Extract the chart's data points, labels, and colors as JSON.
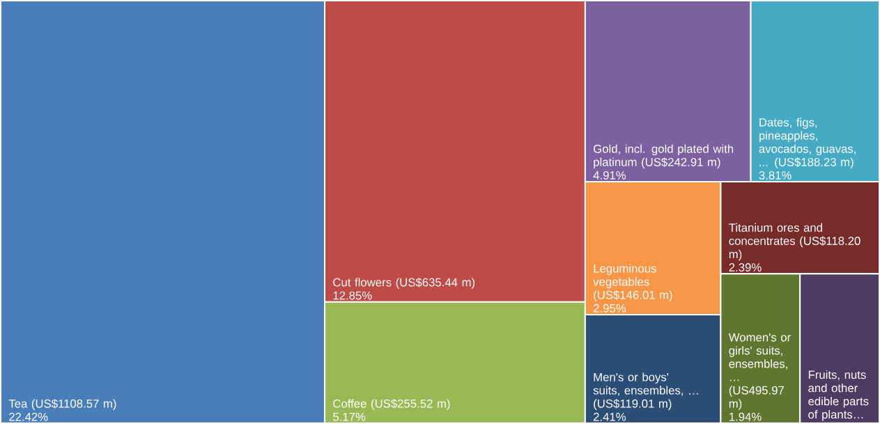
{
  "chart_data": {
    "type": "other",
    "categories": [
      "Tea (US$1108.57 m)",
      "Cut flowers (US$635.44 m)",
      "Coffee (US$255.52 m)",
      "Gold, incl. gold plated with platinum (US$242.91 m)",
      "Dates, figs, pineapples, avocados, guavas, ... (US$188.23 m)",
      "Leguminous vegetables (US$146.01 m)",
      "Men's or boys' suits, ensembles, … (US$119.01 m)",
      "Titanium ores and concentrates (US$118.20 m)",
      "Women's or girls' suits, ensembles, … (US495.97 m)",
      "Fruits, nuts and other edible parts of plants…"
    ],
    "values": [
      22.42,
      12.85,
      5.17,
      4.91,
      3.81,
      2.95,
      2.41,
      2.39,
      1.94,
      null
    ],
    "value_labels": [
      "22.42%",
      "12.85%",
      "5.17%",
      "4.91%",
      "3.81%",
      "2.95%",
      "2.41%",
      "2.39%",
      "1.94%",
      null
    ],
    "colors": [
      "#4a7ebb",
      "#be4b48",
      "#98b954",
      "#7d60a0",
      "#46aac5",
      "#f79646",
      "#2c4d75",
      "#772c2a",
      "#5f7530",
      "#4d3b62"
    ]
  }
}
